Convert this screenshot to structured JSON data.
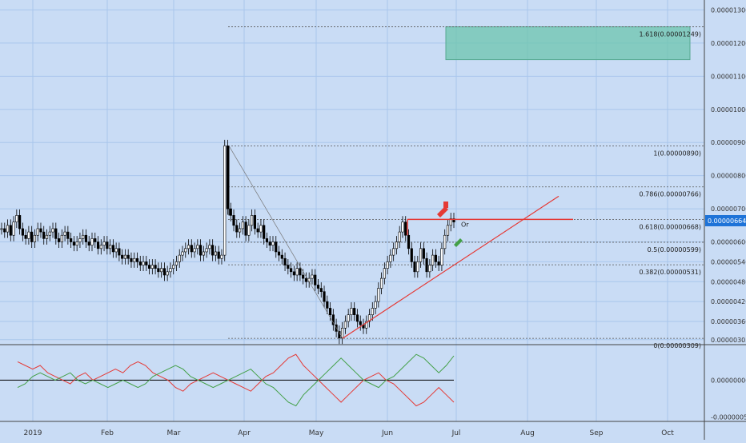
{
  "chart_data": [
    {
      "type": "candlestick",
      "title": "",
      "colors": {
        "up": "#000000",
        "down": "#000000",
        "background": "#c9dcf5",
        "grid": "#a9c6ec"
      },
      "yticks": [
        "0.00001300",
        "0.00001200",
        "0.00001100",
        "0.00001000",
        "0.00000900",
        "0.00000800",
        "0.00000700",
        "0.00000600",
        "0.00000540",
        "0.00000480",
        "0.00000420",
        "0.00000360",
        "0.00000305"
      ],
      "ylim": [
        3e-06,
        1.33e-05
      ],
      "xticks": [
        "2019",
        "Feb",
        "Mar",
        "Apr",
        "May",
        "Jun",
        "Jul",
        "Aug",
        "Sep",
        "Oct"
      ],
      "current_price_label": "0.00000664",
      "close": [
        6.4,
        6.3,
        6.5,
        6.2,
        6.6,
        6.8,
        6.4,
        6.2,
        6.1,
        6.3,
        6.0,
        6.2,
        6.4,
        6.3,
        6.1,
        6.2,
        6.3,
        6.4,
        6.1,
        6.0,
        6.2,
        6.3,
        6.1,
        6.0,
        5.9,
        6.0,
        6.1,
        6.2,
        6.0,
        5.9,
        6.1,
        6.0,
        5.8,
        5.9,
        6.0,
        5.8,
        5.9,
        5.7,
        5.8,
        5.6,
        5.5,
        5.6,
        5.5,
        5.4,
        5.5,
        5.4,
        5.3,
        5.4,
        5.3,
        5.2,
        5.3,
        5.2,
        5.1,
        5.2,
        5.0,
        5.1,
        5.2,
        5.3,
        5.4,
        5.6,
        5.7,
        5.8,
        5.9,
        5.7,
        5.8,
        5.9,
        5.6,
        5.7,
        5.8,
        5.9,
        5.6,
        5.7,
        5.5,
        5.6,
        8.9,
        7.0,
        6.8,
        6.5,
        6.3,
        6.4,
        6.6,
        6.2,
        6.5,
        6.8,
        6.4,
        6.3,
        6.5,
        6.1,
        6.0,
        5.9,
        6.0,
        5.7,
        5.6,
        5.5,
        5.3,
        5.2,
        5.1,
        5.0,
        5.2,
        5.0,
        4.9,
        4.8,
        4.9,
        5.0,
        4.7,
        4.6,
        4.5,
        4.2,
        4.0,
        3.8,
        3.5,
        3.3,
        3.1,
        3.4,
        3.6,
        3.8,
        4.0,
        3.8,
        3.6,
        3.5,
        3.4,
        3.6,
        3.8,
        4.0,
        4.2,
        4.6,
        4.9,
        5.2,
        5.4,
        5.6,
        5.8,
        6.0,
        6.3,
        6.6,
        6.2,
        5.8,
        5.4,
        5.1,
        5.4,
        5.8,
        5.5,
        5.1,
        5.3,
        5.6,
        5.4,
        5.3,
        5.8,
        6.2,
        6.5,
        6.7,
        6.6
      ],
      "fibonacci": [
        {
          "label": "1.618(0.00001249)",
          "value": 12.49
        },
        {
          "label": "1(0.00000890)",
          "value": 8.9
        },
        {
          "label": "0.786(0.00000766)",
          "value": 7.66
        },
        {
          "label": "0.618(0.00000668)",
          "value": 6.68
        },
        {
          "label": "0.5(0.00000599)",
          "value": 5.99
        },
        {
          "label": "0.382(0.00000531)",
          "value": 5.31
        },
        {
          "label": "0(0.00000309)",
          "value": 3.09
        }
      ],
      "target_zone": {
        "from": 11.5,
        "to": 12.49
      },
      "annotations": [
        "Or"
      ]
    },
    {
      "type": "line",
      "title": "",
      "yticks": [
        "0.00000000",
        "-0.00000050"
      ],
      "series": [
        {
          "color": "#e53935",
          "values": [
            0.25,
            0.2,
            0.15,
            0.2,
            0.1,
            0.05,
            0.0,
            -0.05,
            0.05,
            0.1,
            0.0,
            0.05,
            0.1,
            0.15,
            0.1,
            0.2,
            0.25,
            0.2,
            0.1,
            0.05,
            0.0,
            -0.1,
            -0.15,
            -0.05,
            0.0,
            0.05,
            0.1,
            0.05,
            0.0,
            -0.05,
            -0.1,
            -0.15,
            -0.05,
            0.05,
            0.1,
            0.2,
            0.3,
            0.35,
            0.2,
            0.1,
            0.0,
            -0.1,
            -0.2,
            -0.3,
            -0.2,
            -0.1,
            0.0,
            0.05,
            0.1,
            0.0,
            -0.05,
            -0.15,
            -0.25,
            -0.35,
            -0.3,
            -0.2,
            -0.1,
            -0.2,
            -0.3
          ]
        },
        {
          "color": "#43a047",
          "values": [
            -0.1,
            -0.05,
            0.05,
            0.1,
            0.05,
            0.0,
            0.05,
            0.1,
            0.0,
            -0.05,
            0.0,
            -0.05,
            -0.1,
            -0.05,
            0.0,
            -0.05,
            -0.1,
            -0.05,
            0.05,
            0.1,
            0.15,
            0.2,
            0.15,
            0.05,
            0.0,
            -0.05,
            -0.1,
            -0.05,
            0.0,
            0.05,
            0.1,
            0.15,
            0.05,
            -0.05,
            -0.1,
            -0.2,
            -0.3,
            -0.35,
            -0.2,
            -0.1,
            0.0,
            0.1,
            0.2,
            0.3,
            0.2,
            0.1,
            0.0,
            -0.05,
            -0.1,
            0.0,
            0.05,
            0.15,
            0.25,
            0.35,
            0.3,
            0.2,
            0.1,
            0.2,
            0.33
          ]
        }
      ]
    }
  ]
}
